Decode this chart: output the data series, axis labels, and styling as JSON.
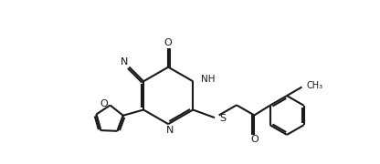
{
  "background_color": "#ffffff",
  "line_color": "#1a1a1a",
  "line_width": 1.5,
  "fig_width": 4.16,
  "fig_height": 1.8,
  "dpi": 100,
  "xlim": [
    -1.5,
    9.5
  ],
  "ylim": [
    -2.5,
    3.5
  ]
}
